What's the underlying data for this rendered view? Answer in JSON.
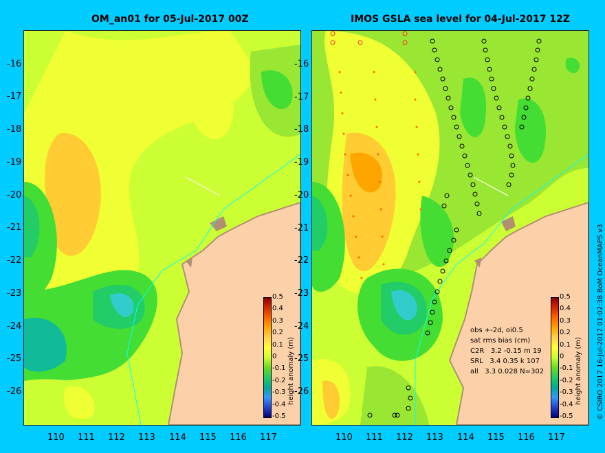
{
  "left_panel": {
    "title": "OM_an01 for 05-Jul-2017 00Z"
  },
  "right_panel": {
    "title": "IMOS GSLA sea level  for 04-Jul-2017 12Z",
    "info_lines": [
      "obs +-2d, oi0.5",
      "sat rms bias (cm)",
      "C2R   3.2 -0.15 m 19",
      "SRL   3.4 0.35 k 107",
      "all   3.3 0.028 N=302"
    ]
  },
  "y_ticks": [
    "-16",
    "-17",
    "-18",
    "-19",
    "-20",
    "-21",
    "-22",
    "-23",
    "-24",
    "-25",
    "-26"
  ],
  "x_ticks": [
    "110",
    "111",
    "112",
    "113",
    "114",
    "115",
    "116",
    "117"
  ],
  "colorbar": {
    "title": "height anomaly (m)",
    "labels": [
      "0.5",
      "0.4",
      "0.3",
      "0.2",
      "0.1",
      "0",
      "-0.1",
      "-0.2",
      "-0.3",
      "-0.4",
      "-0.5"
    ],
    "colors": [
      "#8b0000",
      "#d42a00",
      "#ff6600",
      "#ffa500",
      "#ffd24d",
      "#ffff33",
      "#ccff33",
      "#66dd22",
      "#22cc66",
      "#00aa99",
      "#3399ff",
      "#2244cc",
      "#000080"
    ]
  },
  "credit": "© CSIRO 2017   16-Jul-2017 01:02:38 BoM OceanMAPS v3",
  "map_colors": {
    "land": "#fcd0a8",
    "land_edge": "#b09070",
    "bg_green": "#99e633",
    "light_green": "#ccff33",
    "yellow": "#f0ff33",
    "orange": "#ffcc33",
    "green": "#44dd33",
    "dark_green": "#22cc66",
    "teal": "#11bb99",
    "cyan": "#33cccc",
    "contour_line": "#00ffff"
  }
}
